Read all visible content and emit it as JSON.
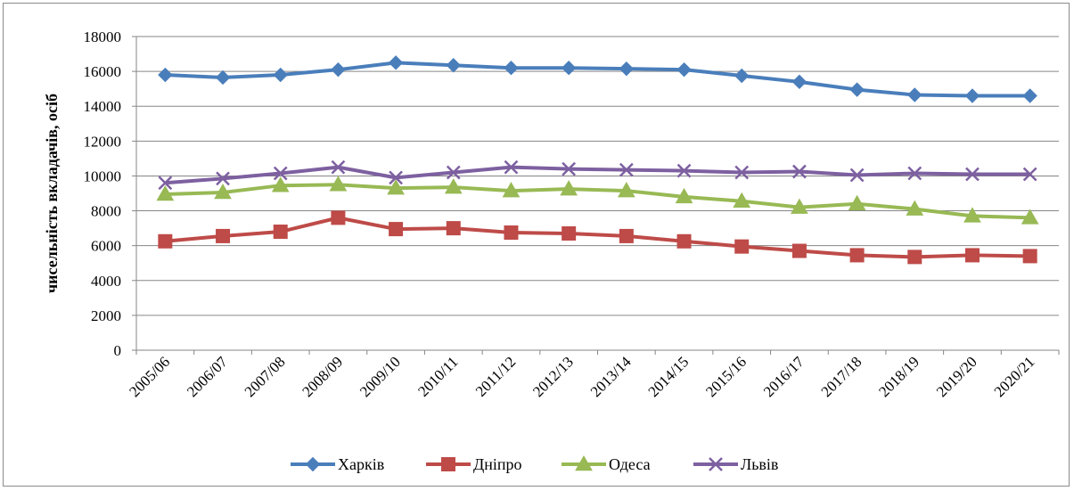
{
  "chart_data": {
    "type": "line",
    "title": "",
    "xlabel": "",
    "ylabel": "чисельність вкладачів, осіб",
    "ylim": [
      0,
      18000
    ],
    "ytick_step": 2000,
    "grid": true,
    "legend_position": "bottom",
    "categories": [
      "2005/06",
      "2006/07",
      "2007/08",
      "2008/09",
      "2009/10",
      "2010/11",
      "2011/12",
      "2012/13",
      "2013/14",
      "2014/15",
      "2015/16",
      "2016/17",
      "2017/18",
      "2018/19",
      "2019/20",
      "2020/21"
    ],
    "series": [
      {
        "name": "Харків",
        "color": "#4a7ebb",
        "marker": "diamond",
        "values": [
          15800,
          15650,
          15800,
          16100,
          16500,
          16350,
          16200,
          16200,
          16150,
          16100,
          15750,
          15400,
          14950,
          14650,
          14600,
          14600
        ]
      },
      {
        "name": "Дніпро",
        "color": "#be4b48",
        "marker": "square",
        "values": [
          6250,
          6550,
          6800,
          7600,
          6950,
          7000,
          6750,
          6700,
          6550,
          6250,
          5950,
          5700,
          5450,
          5350,
          5450,
          5400
        ]
      },
      {
        "name": "Одеса",
        "color": "#98b954",
        "marker": "triangle",
        "values": [
          8950,
          9050,
          9450,
          9500,
          9300,
          9350,
          9150,
          9250,
          9150,
          8800,
          8550,
          8200,
          8400,
          8100,
          7700,
          7600
        ]
      },
      {
        "name": "Львів",
        "color": "#7d60a0",
        "marker": "x",
        "values": [
          9600,
          9850,
          10150,
          10500,
          9900,
          10200,
          10500,
          10400,
          10350,
          10300,
          10200,
          10250,
          10050,
          10150,
          10100,
          10100
        ]
      }
    ]
  }
}
